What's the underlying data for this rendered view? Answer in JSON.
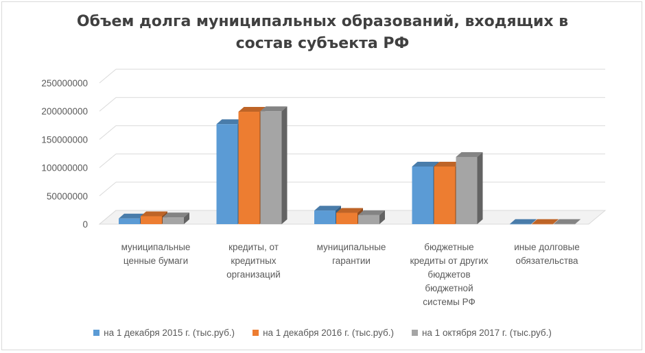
{
  "chart_data": {
    "type": "bar",
    "title": "Объем долга муниципальных образований, входящих в состав субъекта РФ",
    "categories": [
      [
        "муниципальные",
        "ценные бумаги"
      ],
      [
        "кредиты, от",
        "кредитных",
        "организаций"
      ],
      [
        "муниципальные",
        "гарантии"
      ],
      [
        "бюджетные",
        "кредиты от других",
        "бюджетов",
        "бюджетной",
        "системы РФ"
      ],
      [
        "иные долговые",
        "обязательства"
      ]
    ],
    "series": [
      {
        "name": "на 1 декабря 2015 г. (тыс.руб.)",
        "color": "#5b9bd5",
        "values": [
          10000000,
          177000000,
          24000000,
          102000000,
          300000
        ]
      },
      {
        "name": "на 1 декабря 2016 г. (тыс.руб.)",
        "color": "#ed7d31",
        "values": [
          14000000,
          199000000,
          20000000,
          102000000,
          300000
        ]
      },
      {
        "name": "на 1 октября 2017 г. (тыс.руб.)",
        "color": "#a5a5a5",
        "values": [
          12000000,
          200000000,
          16000000,
          119000000,
          300000
        ]
      }
    ],
    "yticks": [
      "0",
      "50000000",
      "100000000",
      "150000000",
      "200000000",
      "250000000"
    ],
    "ylim": [
      0,
      250000000
    ],
    "grid": true,
    "legend_position": "bottom",
    "style": "3d-clustered-column"
  }
}
